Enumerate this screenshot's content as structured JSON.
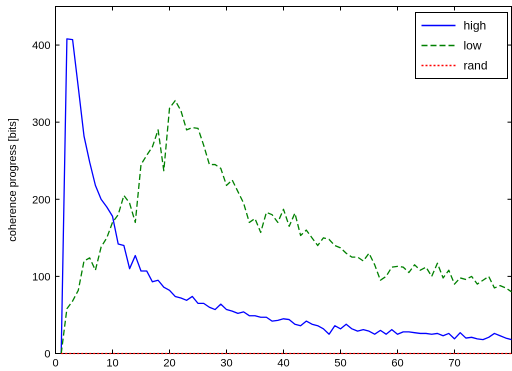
{
  "chart_data": {
    "type": "line",
    "title": "",
    "xlabel": "",
    "ylabel": "coherence progress [bits]",
    "xlim": [
      0,
      80
    ],
    "ylim": [
      0,
      450
    ],
    "xticks": [
      0,
      10,
      20,
      30,
      40,
      50,
      60,
      70
    ],
    "yticks": [
      0,
      100,
      200,
      300,
      400
    ],
    "grid": false,
    "legend": "top-right",
    "series": [
      {
        "name": "high",
        "color": "#0000ff",
        "style": "solid",
        "x": [
          1,
          2,
          3,
          4,
          5,
          6,
          7,
          8,
          9,
          10,
          11,
          12,
          13,
          14,
          15,
          16,
          17,
          18,
          19,
          20,
          21,
          22,
          23,
          24,
          25,
          26,
          27,
          28,
          29,
          30,
          31,
          32,
          33,
          34,
          35,
          36,
          37,
          38,
          39,
          40,
          41,
          42,
          43,
          44,
          45,
          46,
          47,
          48,
          49,
          50,
          51,
          52,
          53,
          54,
          55,
          56,
          57,
          58,
          59,
          60,
          61,
          62,
          63,
          64,
          65,
          66,
          67,
          68,
          69,
          70,
          71,
          72,
          73,
          74,
          75,
          76,
          77,
          78,
          79,
          80
        ],
        "values": [
          0,
          408,
          407,
          345,
          282,
          248,
          218,
          200,
          190,
          178,
          142,
          140,
          110,
          127,
          107,
          107,
          93,
          95,
          86,
          82,
          74,
          72,
          69,
          74,
          65,
          65,
          60,
          57,
          64,
          57,
          55,
          52,
          54,
          49,
          49,
          47,
          47,
          42,
          43,
          45,
          44,
          38,
          36,
          42,
          38,
          36,
          32,
          25,
          36,
          32,
          38,
          32,
          29,
          31,
          29,
          25,
          30,
          25,
          31,
          25,
          28,
          28,
          27,
          26,
          26,
          25,
          26,
          23,
          26,
          19,
          27,
          20,
          21,
          19,
          18,
          21,
          26,
          23,
          20,
          18
        ]
      },
      {
        "name": "low",
        "color": "#008000",
        "style": "dashed",
        "x": [
          1,
          2,
          3,
          4,
          5,
          6,
          7,
          8,
          9,
          10,
          11,
          12,
          13,
          14,
          15,
          16,
          17,
          18,
          19,
          20,
          21,
          22,
          23,
          24,
          25,
          26,
          27,
          28,
          29,
          30,
          31,
          32,
          33,
          34,
          35,
          36,
          37,
          38,
          39,
          40,
          41,
          42,
          43,
          44,
          45,
          46,
          47,
          48,
          49,
          50,
          51,
          52,
          53,
          54,
          55,
          56,
          57,
          58,
          59,
          60,
          61,
          62,
          63,
          64,
          65,
          66,
          67,
          68,
          69,
          70,
          71,
          72,
          73,
          74,
          75,
          76,
          77,
          78,
          79,
          80
        ],
        "values": [
          0,
          58,
          68,
          82,
          120,
          124,
          108,
          138,
          150,
          170,
          180,
          205,
          195,
          170,
          245,
          257,
          268,
          290,
          237,
          318,
          328,
          315,
          290,
          293,
          292,
          270,
          245,
          245,
          240,
          218,
          225,
          210,
          195,
          170,
          175,
          157,
          183,
          180,
          170,
          187,
          165,
          182,
          153,
          160,
          150,
          140,
          150,
          148,
          140,
          137,
          130,
          125,
          125,
          120,
          130,
          115,
          95,
          100,
          112,
          113,
          112,
          105,
          115,
          108,
          112,
          100,
          117,
          98,
          108,
          90,
          98,
          96,
          100,
          90,
          95,
          100,
          85,
          88,
          85,
          80
        ]
      },
      {
        "name": "rand",
        "color": "#ff0000",
        "style": "dotted",
        "x": [
          1,
          80
        ],
        "values": [
          0,
          0
        ]
      }
    ]
  }
}
